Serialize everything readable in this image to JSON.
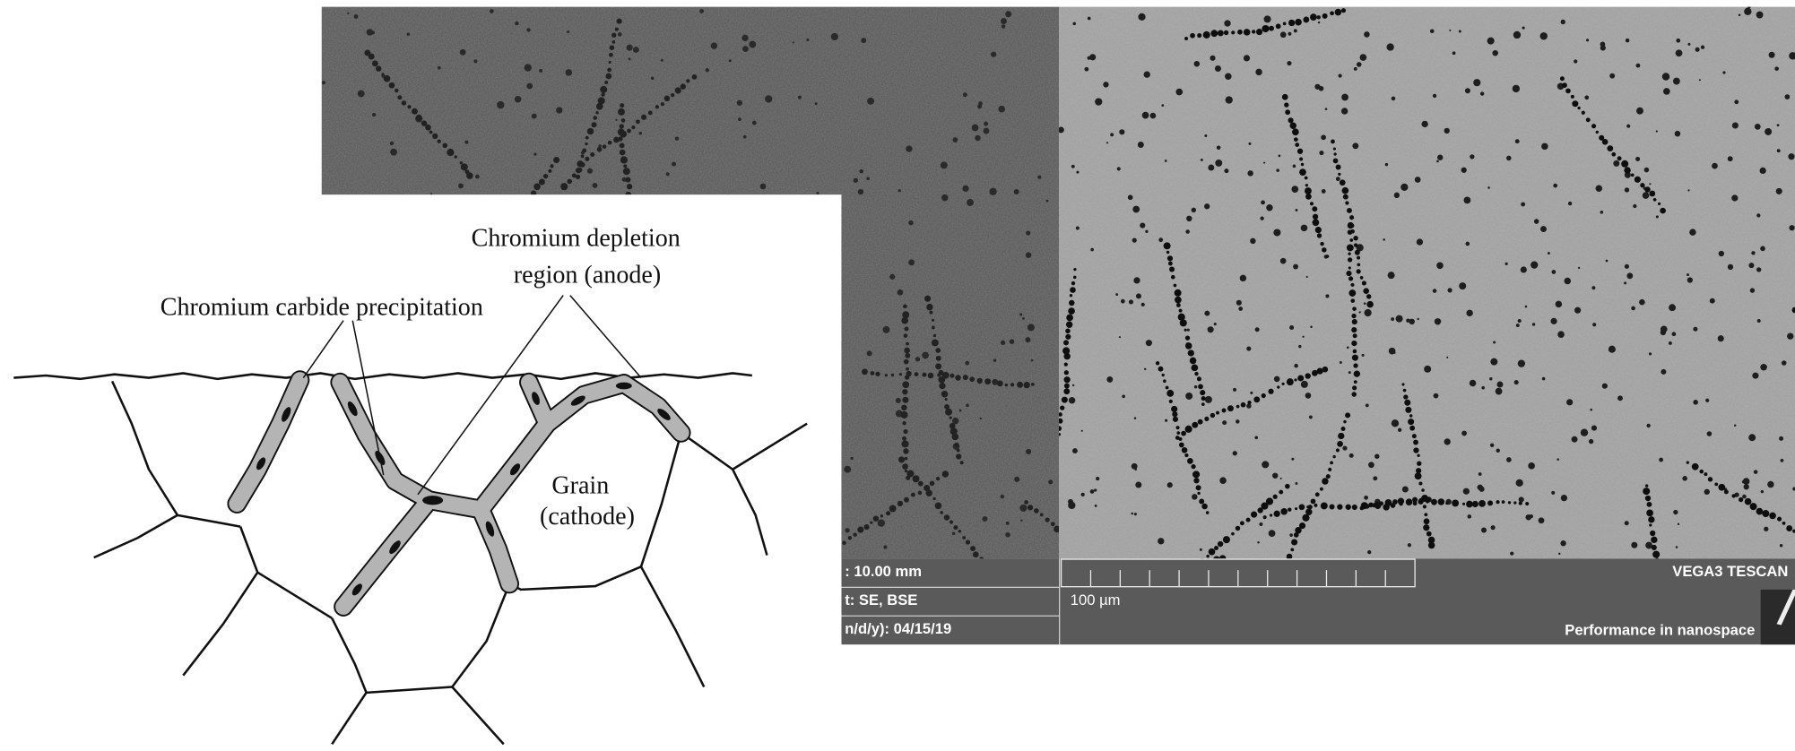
{
  "diagram": {
    "labels": [
      "Chromium depletion",
      "region (anode)",
      "Chromium carbide precipitation",
      "Grain",
      "(cathode)"
    ]
  },
  "sem": {
    "info": [
      ": 10.00 mm",
      "t: SE, BSE",
      "n/d/y): 04/15/19"
    ],
    "scale_bar": "100 µm",
    "brand": "VEGA3 TESCAN",
    "tagline": "Performance in nanospace"
  }
}
